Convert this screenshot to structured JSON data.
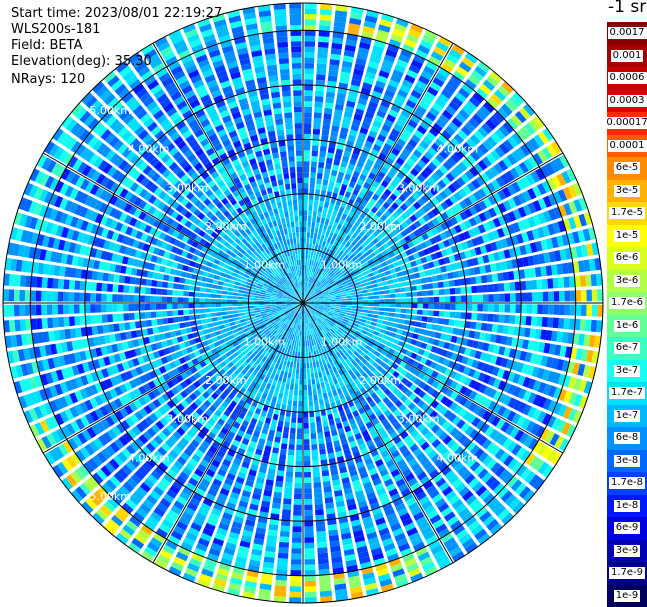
{
  "header": {
    "start_time": "Start time: 2023/08/01 22:19:27",
    "instrument": "WLS200s-181",
    "field": "Field: BETA",
    "elevation": "Elevation(deg): 35.30",
    "nrays": "NRays: 120"
  },
  "colorbar": {
    "title": "-1 sr",
    "ticks": [
      {
        "label": "0.0017",
        "color": "#8b0000"
      },
      {
        "label": "0.001",
        "color": "#a80000"
      },
      {
        "label": "0.0006",
        "color": "#c40000"
      },
      {
        "label": "0.0003",
        "color": "#e00000"
      },
      {
        "label": "0.00017",
        "color": "#ff2a00"
      },
      {
        "label": "0.0001",
        "color": "#ff5a00"
      },
      {
        "label": "6e-5",
        "color": "#ff8c00"
      },
      {
        "label": "3e-5",
        "color": "#ffb000"
      },
      {
        "label": "1.7e-5",
        "color": "#ffd800"
      },
      {
        "label": "1e-5",
        "color": "#ffff00"
      },
      {
        "label": "6e-6",
        "color": "#d8ff1e"
      },
      {
        "label": "3e-6",
        "color": "#b0ff46"
      },
      {
        "label": "1.7e-6",
        "color": "#8cff6c"
      },
      {
        "label": "1e-6",
        "color": "#62ff96"
      },
      {
        "label": "6e-7",
        "color": "#3affc2"
      },
      {
        "label": "3e-7",
        "color": "#14fff0"
      },
      {
        "label": "1.7e-7",
        "color": "#00e0ff"
      },
      {
        "label": "1e-7",
        "color": "#00b8ff"
      },
      {
        "label": "6e-8",
        "color": "#0090ff"
      },
      {
        "label": "3e-8",
        "color": "#0068ff"
      },
      {
        "label": "1.7e-8",
        "color": "#0040ff"
      },
      {
        "label": "1e-8",
        "color": "#0018ff"
      },
      {
        "label": "6e-9",
        "color": "#0000e0"
      },
      {
        "label": "3e-9",
        "color": "#0000b4"
      },
      {
        "label": "1.7e-9",
        "color": "#000088"
      },
      {
        "label": "1e-9",
        "color": "#00005c"
      }
    ]
  },
  "chart_data": {
    "type": "heatmap",
    "projection": "polar (PPI scan)",
    "field": "BETA",
    "units": "-1 sr",
    "nrays": 120,
    "azimuth_range_deg": [
      0,
      360
    ],
    "range_max_km": 5.5,
    "range_rings_km": [
      1,
      2,
      3,
      4,
      5
    ],
    "ring_labels": [
      "1.00km",
      "2.00km",
      "3.00km",
      "4.00km",
      "5.00km"
    ],
    "spoke_angles_deg": [
      0,
      30,
      60,
      90,
      120,
      150,
      180,
      210,
      240,
      270,
      300,
      330
    ],
    "value_scale": "log",
    "value_range": [
      1e-09,
      0.0017
    ],
    "typical_value_near_center": 1e-07,
    "typical_value_mid_range": 6e-08,
    "enhanced_values_outer_ring": {
      "range_km": [
        5.0,
        5.5
      ],
      "value_max": 6e-05,
      "sectors_deg": [
        "0-60",
        "60-120",
        "150-240"
      ]
    },
    "grid": true
  }
}
